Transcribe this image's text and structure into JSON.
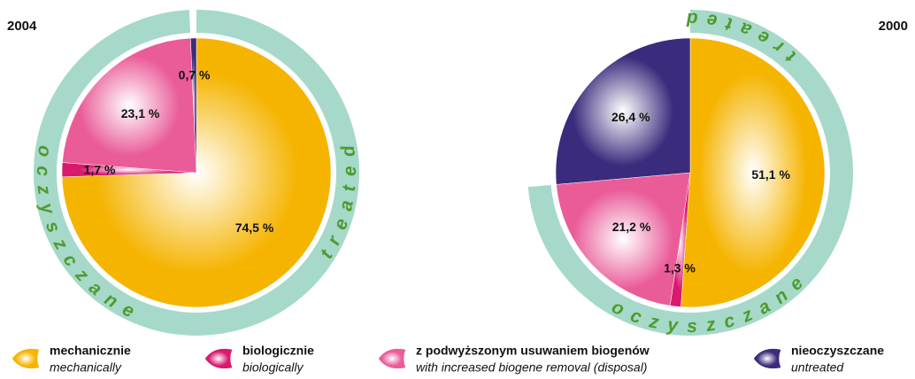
{
  "chart_data": [
    {
      "type": "pie",
      "title": "2004",
      "values": [
        74.5,
        1.7,
        23.1,
        0.7
      ],
      "value_labels": [
        "74,5 %",
        "1,7 %",
        "23,1 %",
        "0,7 %"
      ]
    },
    {
      "type": "pie",
      "title": "2000",
      "values": [
        51.1,
        1.3,
        21.2,
        26.4
      ],
      "value_labels": [
        "51,1 %",
        "1,3 %",
        "21,2 %",
        "26,4 %"
      ]
    }
  ],
  "legend": {
    "labels": [
      "mechanicznie",
      "biologicznie",
      "z podwyższonym usuwaniem biogenów",
      "nieoczyszczane"
    ],
    "sublabels": [
      "mechanically",
      "biologically",
      "with increased biogene removal (disposal)",
      "untreated"
    ],
    "colors": [
      "#f5b400",
      "#d8196e",
      "#ea5c98",
      "#3b2b7c"
    ]
  },
  "ring_text": [
    "oczyszczane",
    "treated"
  ]
}
